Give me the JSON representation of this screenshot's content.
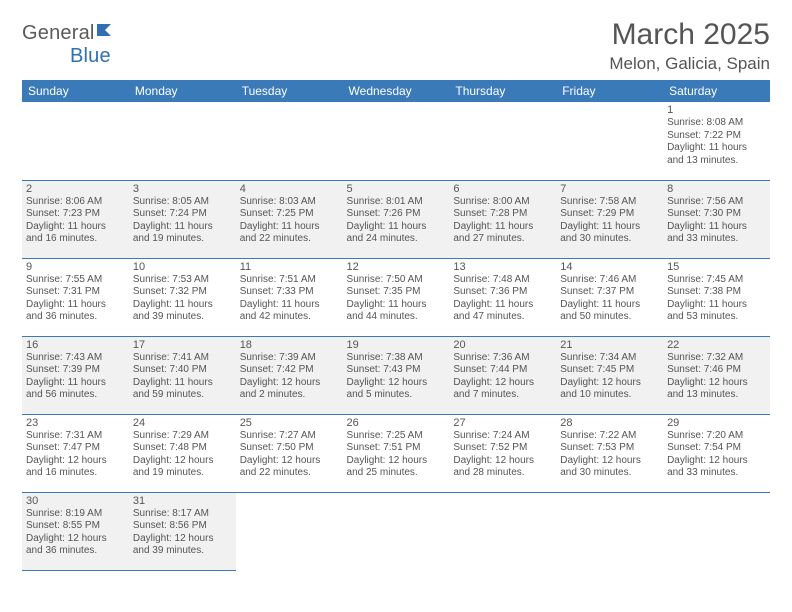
{
  "logo": {
    "text_a": "General",
    "text_b": "Blue"
  },
  "title": "March 2025",
  "location": "Melon, Galicia, Spain",
  "colors": {
    "header_bg": "#3a7ab8",
    "header_text": "#ffffff",
    "border": "#3a7ab8",
    "shaded_bg": "#f1f1f1",
    "text": "#555555"
  },
  "dow": [
    "Sunday",
    "Monday",
    "Tuesday",
    "Wednesday",
    "Thursday",
    "Friday",
    "Saturday"
  ],
  "weeks": [
    [
      null,
      null,
      null,
      null,
      null,
      null,
      {
        "n": "1",
        "sr": "8:08 AM",
        "ss": "7:22 PM",
        "dl": "11 hours",
        "dl2": "and 13 minutes.",
        "shaded": false
      }
    ],
    [
      {
        "n": "2",
        "sr": "8:06 AM",
        "ss": "7:23 PM",
        "dl": "11 hours",
        "dl2": "and 16 minutes.",
        "shaded": true
      },
      {
        "n": "3",
        "sr": "8:05 AM",
        "ss": "7:24 PM",
        "dl": "11 hours",
        "dl2": "and 19 minutes.",
        "shaded": true
      },
      {
        "n": "4",
        "sr": "8:03 AM",
        "ss": "7:25 PM",
        "dl": "11 hours",
        "dl2": "and 22 minutes.",
        "shaded": true
      },
      {
        "n": "5",
        "sr": "8:01 AM",
        "ss": "7:26 PM",
        "dl": "11 hours",
        "dl2": "and 24 minutes.",
        "shaded": true
      },
      {
        "n": "6",
        "sr": "8:00 AM",
        "ss": "7:28 PM",
        "dl": "11 hours",
        "dl2": "and 27 minutes.",
        "shaded": true
      },
      {
        "n": "7",
        "sr": "7:58 AM",
        "ss": "7:29 PM",
        "dl": "11 hours",
        "dl2": "and 30 minutes.",
        "shaded": true
      },
      {
        "n": "8",
        "sr": "7:56 AM",
        "ss": "7:30 PM",
        "dl": "11 hours",
        "dl2": "and 33 minutes.",
        "shaded": true
      }
    ],
    [
      {
        "n": "9",
        "sr": "7:55 AM",
        "ss": "7:31 PM",
        "dl": "11 hours",
        "dl2": "and 36 minutes.",
        "shaded": false
      },
      {
        "n": "10",
        "sr": "7:53 AM",
        "ss": "7:32 PM",
        "dl": "11 hours",
        "dl2": "and 39 minutes.",
        "shaded": false
      },
      {
        "n": "11",
        "sr": "7:51 AM",
        "ss": "7:33 PM",
        "dl": "11 hours",
        "dl2": "and 42 minutes.",
        "shaded": false
      },
      {
        "n": "12",
        "sr": "7:50 AM",
        "ss": "7:35 PM",
        "dl": "11 hours",
        "dl2": "and 44 minutes.",
        "shaded": false
      },
      {
        "n": "13",
        "sr": "7:48 AM",
        "ss": "7:36 PM",
        "dl": "11 hours",
        "dl2": "and 47 minutes.",
        "shaded": false
      },
      {
        "n": "14",
        "sr": "7:46 AM",
        "ss": "7:37 PM",
        "dl": "11 hours",
        "dl2": "and 50 minutes.",
        "shaded": false
      },
      {
        "n": "15",
        "sr": "7:45 AM",
        "ss": "7:38 PM",
        "dl": "11 hours",
        "dl2": "and 53 minutes.",
        "shaded": false
      }
    ],
    [
      {
        "n": "16",
        "sr": "7:43 AM",
        "ss": "7:39 PM",
        "dl": "11 hours",
        "dl2": "and 56 minutes.",
        "shaded": true
      },
      {
        "n": "17",
        "sr": "7:41 AM",
        "ss": "7:40 PM",
        "dl": "11 hours",
        "dl2": "and 59 minutes.",
        "shaded": true
      },
      {
        "n": "18",
        "sr": "7:39 AM",
        "ss": "7:42 PM",
        "dl": "12 hours",
        "dl2": "and 2 minutes.",
        "shaded": true
      },
      {
        "n": "19",
        "sr": "7:38 AM",
        "ss": "7:43 PM",
        "dl": "12 hours",
        "dl2": "and 5 minutes.",
        "shaded": true
      },
      {
        "n": "20",
        "sr": "7:36 AM",
        "ss": "7:44 PM",
        "dl": "12 hours",
        "dl2": "and 7 minutes.",
        "shaded": true
      },
      {
        "n": "21",
        "sr": "7:34 AM",
        "ss": "7:45 PM",
        "dl": "12 hours",
        "dl2": "and 10 minutes.",
        "shaded": true
      },
      {
        "n": "22",
        "sr": "7:32 AM",
        "ss": "7:46 PM",
        "dl": "12 hours",
        "dl2": "and 13 minutes.",
        "shaded": true
      }
    ],
    [
      {
        "n": "23",
        "sr": "7:31 AM",
        "ss": "7:47 PM",
        "dl": "12 hours",
        "dl2": "and 16 minutes.",
        "shaded": false
      },
      {
        "n": "24",
        "sr": "7:29 AM",
        "ss": "7:48 PM",
        "dl": "12 hours",
        "dl2": "and 19 minutes.",
        "shaded": false
      },
      {
        "n": "25",
        "sr": "7:27 AM",
        "ss": "7:50 PM",
        "dl": "12 hours",
        "dl2": "and 22 minutes.",
        "shaded": false
      },
      {
        "n": "26",
        "sr": "7:25 AM",
        "ss": "7:51 PM",
        "dl": "12 hours",
        "dl2": "and 25 minutes.",
        "shaded": false
      },
      {
        "n": "27",
        "sr": "7:24 AM",
        "ss": "7:52 PM",
        "dl": "12 hours",
        "dl2": "and 28 minutes.",
        "shaded": false
      },
      {
        "n": "28",
        "sr": "7:22 AM",
        "ss": "7:53 PM",
        "dl": "12 hours",
        "dl2": "and 30 minutes.",
        "shaded": false
      },
      {
        "n": "29",
        "sr": "7:20 AM",
        "ss": "7:54 PM",
        "dl": "12 hours",
        "dl2": "and 33 minutes.",
        "shaded": false
      }
    ],
    [
      {
        "n": "30",
        "sr": "8:19 AM",
        "ss": "8:55 PM",
        "dl": "12 hours",
        "dl2": "and 36 minutes.",
        "shaded": true
      },
      {
        "n": "31",
        "sr": "8:17 AM",
        "ss": "8:56 PM",
        "dl": "12 hours",
        "dl2": "and 39 minutes.",
        "shaded": true
      },
      "blank",
      "blank",
      "blank",
      "blank",
      "blank"
    ]
  ],
  "labels": {
    "sunrise": "Sunrise:",
    "sunset": "Sunset:",
    "daylight": "Daylight:"
  }
}
